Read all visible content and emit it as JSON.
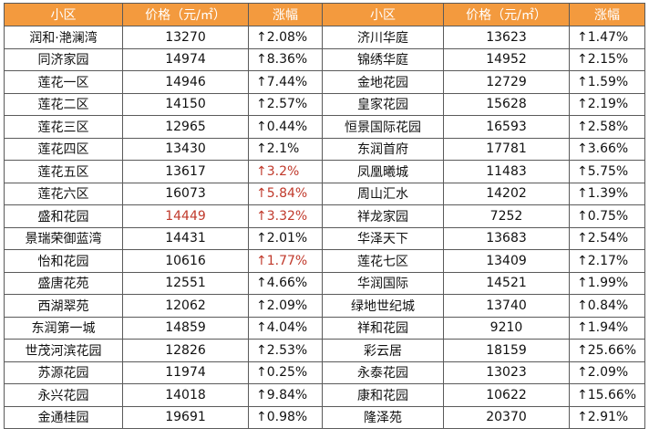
{
  "headers": [
    "小区",
    "价格（元/㎡）",
    "涨幅",
    "小区",
    "价格（元/㎡）",
    "涨幅"
  ],
  "rows": [
    [
      {
        "t": "润和·滟澜湾"
      },
      {
        "t": "13270"
      },
      {
        "t": "↑2.08%"
      },
      {
        "t": "济川华庭"
      },
      {
        "t": "13623"
      },
      {
        "t": "↑1.47%"
      }
    ],
    [
      {
        "t": "同济家园"
      },
      {
        "t": "14974"
      },
      {
        "t": "↑8.36%"
      },
      {
        "t": "锦绣华庭"
      },
      {
        "t": "14952"
      },
      {
        "t": "↑2.15%"
      }
    ],
    [
      {
        "t": "莲花一区"
      },
      {
        "t": "14946"
      },
      {
        "t": "↑7.44%"
      },
      {
        "t": "金地花园"
      },
      {
        "t": "12729"
      },
      {
        "t": "↑1.59%"
      }
    ],
    [
      {
        "t": "莲花二区"
      },
      {
        "t": "14150"
      },
      {
        "t": "↑2.57%"
      },
      {
        "t": "皇家花园"
      },
      {
        "t": "15628"
      },
      {
        "t": "↑2.19%"
      }
    ],
    [
      {
        "t": "莲花三区"
      },
      {
        "t": "12965"
      },
      {
        "t": "↑0.44%"
      },
      {
        "t": "恒景国际花园"
      },
      {
        "t": "16593"
      },
      {
        "t": "↑2.58%"
      }
    ],
    [
      {
        "t": "莲花四区"
      },
      {
        "t": "13430"
      },
      {
        "t": "↑2.1%"
      },
      {
        "t": "东润首府"
      },
      {
        "t": "17781"
      },
      {
        "t": "↑3.66%"
      }
    ],
    [
      {
        "t": "莲花五区"
      },
      {
        "t": "13617"
      },
      {
        "t": "↑3.2%",
        "red": true
      },
      {
        "t": "凤凰曦城"
      },
      {
        "t": "11483"
      },
      {
        "t": "↑5.75%"
      }
    ],
    [
      {
        "t": "莲花六区"
      },
      {
        "t": "16073"
      },
      {
        "t": "↑5.84%",
        "red": true
      },
      {
        "t": "周山汇水"
      },
      {
        "t": "14202"
      },
      {
        "t": "↑1.39%"
      }
    ],
    [
      {
        "t": "盛和花园"
      },
      {
        "t": "14449",
        "red": true
      },
      {
        "t": "↑3.32%",
        "red": true
      },
      {
        "t": "祥龙家园"
      },
      {
        "t": "7252"
      },
      {
        "t": "↑0.75%"
      }
    ],
    [
      {
        "t": "景瑞荣御蓝湾"
      },
      {
        "t": "14431"
      },
      {
        "t": "↑2.01%"
      },
      {
        "t": "华泽天下"
      },
      {
        "t": "13683"
      },
      {
        "t": "↑2.54%"
      }
    ],
    [
      {
        "t": "怡和花园"
      },
      {
        "t": "10616"
      },
      {
        "t": "↑1.77%",
        "red": true
      },
      {
        "t": "莲花七区"
      },
      {
        "t": "13409"
      },
      {
        "t": "↑2.17%"
      }
    ],
    [
      {
        "t": "盛唐花苑"
      },
      {
        "t": "12551"
      },
      {
        "t": "↑4.66%"
      },
      {
        "t": "华润国际"
      },
      {
        "t": "14521"
      },
      {
        "t": "↑1.99%"
      }
    ],
    [
      {
        "t": "西湖翠苑"
      },
      {
        "t": "12062"
      },
      {
        "t": "↑2.09%"
      },
      {
        "t": "绿地世纪城"
      },
      {
        "t": "13740"
      },
      {
        "t": "↑0.84%"
      }
    ],
    [
      {
        "t": "东润第一城"
      },
      {
        "t": "14859"
      },
      {
        "t": "↑4.04%"
      },
      {
        "t": "祥和花园"
      },
      {
        "t": "9210"
      },
      {
        "t": "↑1.94%"
      }
    ],
    [
      {
        "t": "世茂河滨花园"
      },
      {
        "t": "12826"
      },
      {
        "t": "↑2.53%"
      },
      {
        "t": "彩云居"
      },
      {
        "t": "18159"
      },
      {
        "t": "↑25.66%"
      }
    ],
    [
      {
        "t": "苏源花园"
      },
      {
        "t": "11974"
      },
      {
        "t": "↑0.25%"
      },
      {
        "t": "永泰花园"
      },
      {
        "t": "13023"
      },
      {
        "t": "↑2.09%"
      }
    ],
    [
      {
        "t": "永兴花园"
      },
      {
        "t": "14018"
      },
      {
        "t": "↑9.84%"
      },
      {
        "t": "康和花园"
      },
      {
        "t": "10622"
      },
      {
        "t": "↑15.66%"
      }
    ],
    [
      {
        "t": "金通桂园"
      },
      {
        "t": "19691"
      },
      {
        "t": "↑0.98%"
      },
      {
        "t": "隆泽苑"
      },
      {
        "t": "20370"
      },
      {
        "t": "↑2.91%"
      }
    ]
  ],
  "colors": {
    "header_bg": "#f39a3e",
    "header_text": "#ffffff",
    "highlight_text": "#c0392b",
    "border": "#5a5a5a"
  }
}
